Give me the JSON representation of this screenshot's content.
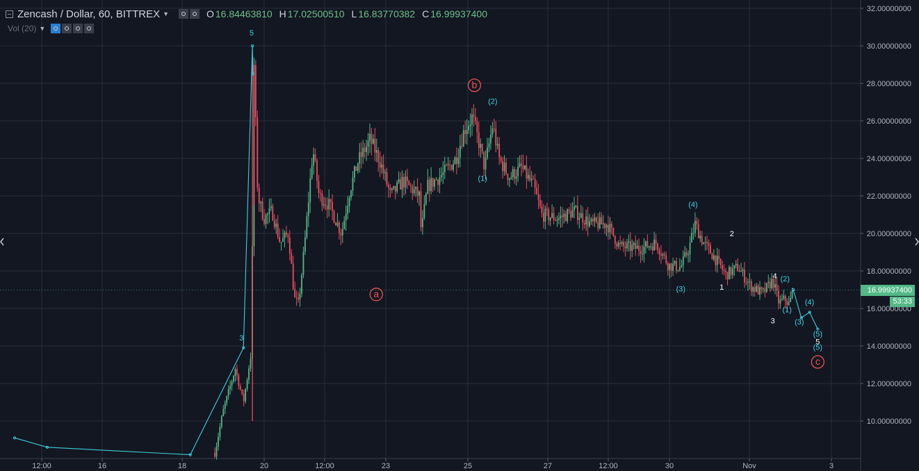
{
  "header": {
    "title": "Zencash / Dollar, 60, BITTREX",
    "open_label": "O",
    "open": "16.84463810",
    "high_label": "H",
    "high": "17.02500510",
    "low_label": "L",
    "low": "16.83770382",
    "close_label": "C",
    "close": "16.99937400"
  },
  "indicator": {
    "label": "Vol (20)"
  },
  "price_tag": {
    "value": "16.99937400",
    "countdown": "53:33"
  },
  "colors": {
    "background": "#131722",
    "up": "#53b987",
    "down": "#eb4d5c",
    "wave": "#3fd0e0",
    "corrective": "#ef5350",
    "grid": "#2a2e39"
  },
  "chart_data": {
    "type": "candlestick",
    "y_ticks": [
      "32.00000000",
      "30.00000000",
      "28.00000000",
      "26.00000000",
      "24.00000000",
      "22.00000000",
      "20.00000000",
      "18.00000000",
      "16.00000000",
      "14.00000000",
      "12.00000000",
      "10.00000000"
    ],
    "x_ticks": [
      "12:00",
      "16",
      "18",
      "20",
      "12:00",
      "23",
      "25",
      "27",
      "12:00",
      "30",
      "Nov",
      "3"
    ],
    "ylim": [
      8.2,
      32.4
    ],
    "grid": true,
    "price_path": [
      [
        18.8,
        8.3
      ],
      [
        19.0,
        10.5
      ],
      [
        19.3,
        12.8
      ],
      [
        19.5,
        11.0
      ],
      [
        19.7,
        13.8
      ],
      [
        19.75,
        29.6
      ],
      [
        19.85,
        22.0
      ],
      [
        20.0,
        20.8
      ],
      [
        20.2,
        21.2
      ],
      [
        20.4,
        19.5
      ],
      [
        20.6,
        20.0
      ],
      [
        20.75,
        16.5
      ],
      [
        20.85,
        16.2
      ],
      [
        21.0,
        19.5
      ],
      [
        21.2,
        24.5
      ],
      [
        21.35,
        22.0
      ],
      [
        21.6,
        21.5
      ],
      [
        21.9,
        20.0
      ],
      [
        22.1,
        22.3
      ],
      [
        22.3,
        23.8
      ],
      [
        22.6,
        25.0
      ],
      [
        22.85,
        23.8
      ],
      [
        23.1,
        22.0
      ],
      [
        23.4,
        22.8
      ],
      [
        23.8,
        22.0
      ],
      [
        23.85,
        20.0
      ],
      [
        24.0,
        22.5
      ],
      [
        24.4,
        23.2
      ],
      [
        24.7,
        24.0
      ],
      [
        24.9,
        25.5
      ],
      [
        25.1,
        26.2
      ],
      [
        25.3,
        24.5
      ],
      [
        25.4,
        23.5
      ],
      [
        25.6,
        25.8
      ],
      [
        25.75,
        24.0
      ],
      [
        26.0,
        23.0
      ],
      [
        26.3,
        23.5
      ],
      [
        26.6,
        22.5
      ],
      [
        26.8,
        21.0
      ],
      [
        27.2,
        20.8
      ],
      [
        27.6,
        21.2
      ],
      [
        28.0,
        20.5
      ],
      [
        28.4,
        20.5
      ],
      [
        28.7,
        19.3
      ],
      [
        29.2,
        19.2
      ],
      [
        29.6,
        19.5
      ],
      [
        29.9,
        18.3
      ],
      [
        30.2,
        18.2
      ],
      [
        30.4,
        19.2
      ],
      [
        30.55,
        20.5
      ],
      [
        30.75,
        19.5
      ],
      [
        31.0,
        18.8
      ],
      [
        31.3,
        17.8
      ],
      [
        31.6,
        18.2
      ],
      [
        31.9,
        17.2
      ],
      [
        32.2,
        16.8
      ],
      [
        32.45,
        17.5
      ],
      [
        32.6,
        16.3
      ],
      [
        32.75,
        16.5
      ],
      [
        32.85,
        16.2
      ],
      [
        32.95,
        16.99
      ]
    ],
    "wave_line": [
      [
        13.9,
        9.1
      ],
      [
        14.7,
        8.6
      ],
      [
        18.2,
        8.2
      ],
      [
        19.5,
        13.9
      ],
      [
        19.72,
        30.0
      ],
      [
        19.73,
        28.5
      ]
    ],
    "projection_line": [
      [
        32.95,
        17.0
      ],
      [
        33.15,
        15.5
      ],
      [
        33.35,
        15.8
      ],
      [
        33.55,
        14.9
      ]
    ],
    "labels": [
      {
        "text": "5",
        "x": 19.7,
        "y": 30.55,
        "color": "wave"
      },
      {
        "text": "3",
        "x": 19.45,
        "y": 14.3,
        "color": "wave"
      },
      {
        "text": "b",
        "x": 25.15,
        "y": 27.75,
        "color": "corrective",
        "circle": true
      },
      {
        "text": "a",
        "x": 22.75,
        "y": 16.6,
        "color": "corrective",
        "circle": true
      },
      {
        "text": "(2)",
        "x": 25.6,
        "y": 26.9,
        "color": "wave"
      },
      {
        "text": "(1)",
        "x": 25.35,
        "y": 22.8,
        "color": "wave"
      },
      {
        "text": "(4)",
        "x": 30.5,
        "y": 21.4,
        "color": "wave"
      },
      {
        "text": "(3)",
        "x": 30.2,
        "y": 16.9,
        "color": "wave"
      },
      {
        "text": "2",
        "x": 31.45,
        "y": 19.85,
        "color": "white"
      },
      {
        "text": "1",
        "x": 31.2,
        "y": 17.0,
        "color": "white"
      },
      {
        "text": "4",
        "x": 32.5,
        "y": 17.6,
        "color": "white"
      },
      {
        "text": "3",
        "x": 32.45,
        "y": 15.2,
        "color": "white"
      },
      {
        "text": "(2)",
        "x": 32.75,
        "y": 17.45,
        "color": "wave"
      },
      {
        "text": "(1)",
        "x": 32.8,
        "y": 15.8,
        "color": "wave"
      },
      {
        "text": "(4)",
        "x": 33.35,
        "y": 16.2,
        "color": "wave"
      },
      {
        "text": "(3)",
        "x": 33.1,
        "y": 15.15,
        "color": "wave"
      },
      {
        "text": "(5)",
        "x": 33.55,
        "y": 14.5,
        "color": "wave"
      },
      {
        "text": "5",
        "x": 33.55,
        "y": 14.1,
        "color": "white"
      },
      {
        "text": "(5)",
        "x": 33.55,
        "y": 13.8,
        "color": "wave"
      },
      {
        "text": "c",
        "x": 33.55,
        "y": 13.0,
        "color": "corrective",
        "circle": true
      }
    ]
  }
}
